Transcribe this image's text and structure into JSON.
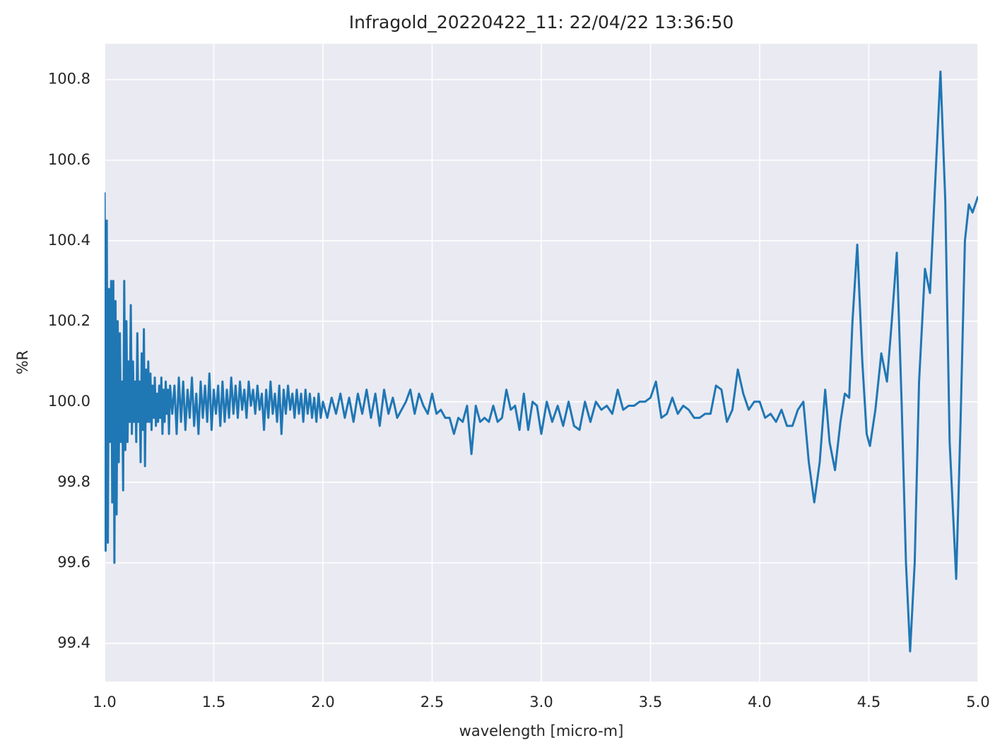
{
  "chart_data": {
    "type": "line",
    "title": "Infragold_20220422_11:  22/04/22 13:36:50",
    "xlabel": "wavelength [micro-m]",
    "ylabel": "%R",
    "color": "#1f77b4",
    "grid": true,
    "xlim": [
      1.0,
      5.0
    ],
    "ylim": [
      99.305,
      100.889
    ],
    "xticks": [
      {
        "value": 1,
        "label": "1.0"
      },
      1.5,
      {
        "value": 2,
        "label": "2.0"
      },
      2.5,
      {
        "value": 3,
        "label": "3.0"
      },
      3.5,
      {
        "value": 4,
        "label": "4.0"
      },
      4.5,
      {
        "value": 5,
        "label": "5.0"
      }
    ],
    "yticks": [
      99.4,
      99.6,
      99.8,
      {
        "value": 100,
        "label": "100.0"
      },
      100.2,
      100.4,
      100.6,
      100.8
    ],
    "x": [
      1.0,
      1.005,
      1.01,
      1.015,
      1.02,
      1.025,
      1.03,
      1.035,
      1.04,
      1.045,
      1.05,
      1.055,
      1.06,
      1.065,
      1.07,
      1.075,
      1.08,
      1.085,
      1.09,
      1.095,
      1.1,
      1.105,
      1.11,
      1.115,
      1.12,
      1.125,
      1.13,
      1.135,
      1.14,
      1.145,
      1.15,
      1.155,
      1.16,
      1.165,
      1.17,
      1.175,
      1.18,
      1.185,
      1.19,
      1.195,
      1.2,
      1.205,
      1.21,
      1.215,
      1.22,
      1.225,
      1.23,
      1.235,
      1.24,
      1.245,
      1.25,
      1.255,
      1.26,
      1.265,
      1.27,
      1.275,
      1.28,
      1.285,
      1.29,
      1.295,
      1.3,
      1.31,
      1.32,
      1.33,
      1.34,
      1.35,
      1.36,
      1.37,
      1.38,
      1.39,
      1.4,
      1.41,
      1.42,
      1.43,
      1.44,
      1.45,
      1.46,
      1.47,
      1.48,
      1.49,
      1.5,
      1.51,
      1.52,
      1.53,
      1.54,
      1.55,
      1.56,
      1.57,
      1.58,
      1.59,
      1.6,
      1.61,
      1.62,
      1.63,
      1.64,
      1.65,
      1.66,
      1.67,
      1.68,
      1.69,
      1.7,
      1.71,
      1.72,
      1.73,
      1.74,
      1.75,
      1.76,
      1.77,
      1.78,
      1.79,
      1.8,
      1.81,
      1.82,
      1.83,
      1.84,
      1.85,
      1.86,
      1.87,
      1.88,
      1.89,
      1.9,
      1.91,
      1.92,
      1.93,
      1.94,
      1.95,
      1.96,
      1.97,
      1.98,
      1.99,
      2.0,
      2.02,
      2.04,
      2.06,
      2.08,
      2.1,
      2.12,
      2.14,
      2.16,
      2.18,
      2.2,
      2.22,
      2.24,
      2.26,
      2.28,
      2.3,
      2.32,
      2.34,
      2.36,
      2.38,
      2.4,
      2.42,
      2.44,
      2.46,
      2.48,
      2.5,
      2.52,
      2.54,
      2.56,
      2.58,
      2.6,
      2.62,
      2.64,
      2.66,
      2.68,
      2.7,
      2.72,
      2.74,
      2.76,
      2.78,
      2.8,
      2.82,
      2.84,
      2.86,
      2.88,
      2.9,
      2.92,
      2.94,
      2.96,
      2.98,
      3.0,
      3.025,
      3.05,
      3.075,
      3.1,
      3.125,
      3.15,
      3.175,
      3.2,
      3.225,
      3.25,
      3.275,
      3.3,
      3.325,
      3.35,
      3.375,
      3.4,
      3.425,
      3.45,
      3.475,
      3.5,
      3.525,
      3.55,
      3.575,
      3.6,
      3.625,
      3.65,
      3.675,
      3.7,
      3.725,
      3.75,
      3.775,
      3.8,
      3.825,
      3.85,
      3.875,
      3.9,
      3.925,
      3.95,
      3.975,
      4.0,
      4.025,
      4.05,
      4.075,
      4.1,
      4.125,
      4.15,
      4.175,
      4.2,
      4.225,
      4.25,
      4.275,
      4.3,
      4.32,
      4.345,
      4.37,
      4.39,
      4.41,
      4.425,
      4.447,
      4.47,
      4.49,
      4.505,
      4.53,
      4.557,
      4.583,
      4.605,
      4.628,
      4.65,
      4.67,
      4.689,
      4.71,
      4.73,
      4.757,
      4.78,
      4.8,
      4.828,
      4.85,
      4.87,
      4.9,
      4.92,
      4.94,
      4.958,
      4.975,
      5.0
    ],
    "values": [
      100.52,
      99.63,
      100.45,
      99.65,
      100.28,
      99.9,
      100.3,
      99.75,
      100.3,
      99.6,
      100.25,
      99.72,
      100.2,
      99.85,
      100.17,
      99.9,
      100.05,
      99.78,
      100.3,
      99.88,
      100.2,
      99.9,
      100.1,
      99.95,
      100.24,
      99.92,
      100.1,
      99.95,
      100.05,
      99.9,
      100.17,
      99.95,
      100.05,
      99.85,
      100.12,
      99.93,
      100.18,
      99.84,
      100.08,
      99.95,
      100.1,
      99.95,
      100.07,
      99.93,
      100.04,
      99.96,
      100.06,
      99.94,
      100.02,
      99.95,
      100.04,
      99.96,
      100.06,
      99.92,
      100.03,
      99.95,
      100.05,
      99.97,
      100.03,
      99.92,
      100.04,
      99.97,
      100.04,
      99.92,
      100.06,
      99.95,
      100.05,
      99.93,
      100.03,
      99.96,
      100.06,
      99.94,
      100.02,
      99.92,
      100.05,
      99.96,
      100.04,
      99.95,
      100.07,
      99.93,
      100.03,
      99.97,
      100.04,
      99.94,
      100.05,
      99.95,
      100.03,
      99.96,
      100.06,
      99.97,
      100.04,
      99.96,
      100.05,
      99.98,
      100.03,
      99.96,
      100.05,
      99.99,
      100.03,
      99.97,
      100.04,
      99.98,
      100.02,
      99.93,
      100.03,
      99.96,
      100.05,
      99.97,
      100.02,
      99.95,
      100.04,
      99.92,
      100.03,
      99.97,
      100.04,
      99.98,
      100.02,
      99.96,
      100.03,
      99.97,
      100.02,
      99.95,
      100.03,
      99.97,
      100.02,
      99.96,
      100.01,
      99.95,
      100.02,
      99.96,
      100.0,
      99.96,
      100.01,
      99.97,
      100.02,
      99.96,
      100.01,
      99.95,
      100.02,
      99.97,
      100.03,
      99.96,
      100.02,
      99.94,
      100.03,
      99.97,
      100.01,
      99.96,
      99.98,
      100.0,
      100.03,
      99.97,
      100.02,
      99.99,
      99.97,
      100.02,
      99.97,
      99.98,
      99.96,
      99.96,
      99.92,
      99.96,
      99.95,
      99.99,
      99.87,
      99.99,
      99.95,
      99.96,
      99.95,
      99.99,
      99.95,
      99.96,
      100.03,
      99.98,
      99.99,
      99.93,
      100.02,
      99.93,
      100.0,
      99.99,
      99.92,
      100.0,
      99.95,
      99.99,
      99.94,
      100.0,
      99.94,
      99.93,
      100.0,
      99.95,
      100.0,
      99.98,
      99.99,
      99.97,
      100.03,
      99.98,
      99.99,
      99.99,
      100.0,
      100.0,
      100.01,
      100.05,
      99.96,
      99.97,
      100.01,
      99.97,
      99.99,
      99.98,
      99.96,
      99.96,
      99.97,
      99.97,
      100.04,
      100.03,
      99.95,
      99.98,
      100.08,
      100.02,
      99.98,
      100.0,
      100.0,
      99.96,
      99.97,
      99.95,
      99.98,
      99.94,
      99.94,
      99.98,
      100.0,
      99.85,
      99.75,
      99.85,
      100.03,
      99.9,
      99.83,
      99.95,
      100.02,
      100.01,
      100.2,
      100.39,
      100.1,
      99.92,
      99.89,
      99.98,
      100.12,
      100.05,
      100.2,
      100.37,
      100.0,
      99.6,
      99.38,
      99.6,
      100.05,
      100.33,
      100.27,
      100.5,
      100.82,
      100.5,
      99.9,
      99.56,
      99.95,
      100.4,
      100.49,
      100.47,
      100.51
    ]
  }
}
